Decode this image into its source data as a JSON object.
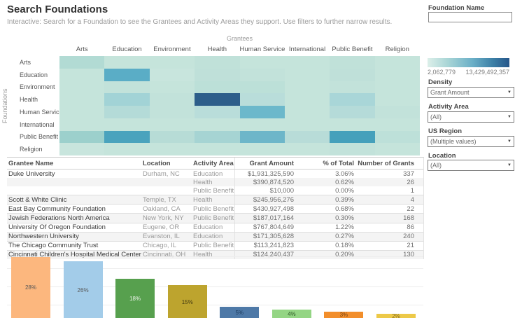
{
  "header": {
    "title": "Search Foundations",
    "subtitle": "Interactive: Search for a Foundation to see the Grantees and Activity Areas they support. Use filters to further narrow results."
  },
  "sidebar": {
    "foundation_name": {
      "label": "Foundation Name",
      "value": ""
    },
    "legend": {
      "min": "2,062,779",
      "max": "13,429,492,357"
    },
    "filters": [
      {
        "label": "Density",
        "value": "Grant Amount"
      },
      {
        "label": "Activity Area",
        "value": "(All)"
      },
      {
        "label": "US Region",
        "value": "(Multiple values)"
      },
      {
        "label": "Location",
        "value": "(All)"
      }
    ]
  },
  "chart_data": [
    {
      "type": "heatmap",
      "x_axis_label": "Grantees",
      "y_axis_label": "Foundations",
      "color_metric": "Grant Amount",
      "color_range": {
        "min": 2062779,
        "max": 13429492357
      },
      "columns": [
        "Arts",
        "Education",
        "Environment",
        "Health",
        "Human Services",
        "International",
        "Public Benefit",
        "Religion"
      ],
      "rows": [
        "Arts",
        "Education",
        "Environment",
        "Health",
        "Human Services",
        "International",
        "Public Benefit",
        "Religion"
      ],
      "cells_hex": [
        [
          "#b2dbd4",
          "#c5e4db",
          "#c5e4db",
          "#c0e1d9",
          "#c5e4db",
          "#c5e4db",
          "#c0e1d9",
          "#c5e4db"
        ],
        [
          "#c5e4db",
          "#5aadc6",
          "#c8e5dd",
          "#bfe0d9",
          "#c2e2da",
          "#c5e4db",
          "#bfe0d9",
          "#c5e4db"
        ],
        [
          "#c5e4db",
          "#c2e2da",
          "#c5e4db",
          "#bce0d8",
          "#bce0d8",
          "#c5e4db",
          "#c2e2da",
          "#c5e4db"
        ],
        [
          "#c5e4db",
          "#a2d3d6",
          "#c2e2da",
          "#2d5e8a",
          "#b9ddda",
          "#c5e4db",
          "#a9d6d8",
          "#c5e4db"
        ],
        [
          "#c5e4db",
          "#b4dbd8",
          "#c2e2da",
          "#b9ddda",
          "#6cb8cb",
          "#c5e4db",
          "#b5dbd9",
          "#c2e2da"
        ],
        [
          "#c5e4db",
          "#c5e4db",
          "#c5e4db",
          "#c5e4db",
          "#c5e4db",
          "#c5e4db",
          "#c5e4db",
          "#c5e4db"
        ],
        [
          "#9cd0cc",
          "#4aa3bd",
          "#b7dcd6",
          "#a6d4d3",
          "#6db6c9",
          "#b8dcd8",
          "#45a0bb",
          "#bde0d9"
        ],
        [
          "#c8e5dd",
          "#c5e4db",
          "#c5e4db",
          "#c5e4db",
          "#c5e4db",
          "#c5e4db",
          "#c2e2da",
          "#c5e4db"
        ]
      ]
    },
    {
      "type": "bar",
      "values": [
        28,
        26,
        18,
        15,
        5,
        4,
        3,
        2
      ],
      "value_labels": [
        "28%",
        "26%",
        "18%",
        "15%",
        "5%",
        "4%",
        "3%",
        "2%"
      ],
      "bar_colors": [
        "#fcb77e",
        "#a3cce9",
        "#57a04e",
        "#bda42e",
        "#4e79a7",
        "#94d584",
        "#f28e2b",
        "#edc948"
      ],
      "label_colors": [
        "#575757",
        "#575757",
        "#eef4ed",
        "#453c12",
        "#1b3a5c",
        "#2f5a28",
        "#713f10",
        "#806a1d"
      ],
      "grid": true
    }
  ],
  "table": {
    "columns": [
      "Grantee Name",
      "Location",
      "Activity Area",
      "Grant Amount",
      "% of Total",
      "Number of Grants"
    ],
    "rows": [
      {
        "grantee": "Duke University",
        "location": "Durham, NC",
        "activity": "Education",
        "amount": "$1,931,325,590",
        "pct": "3.06%",
        "grants": "337",
        "group_start": true
      },
      {
        "grantee": "",
        "location": "",
        "activity": "Health",
        "amount": "$390,874,520",
        "pct": "0.62%",
        "grants": "26",
        "group_start": false
      },
      {
        "grantee": "",
        "location": "",
        "activity": "Public Benefit",
        "amount": "$10,000",
        "pct": "0.00%",
        "grants": "1",
        "group_start": false
      },
      {
        "grantee": "Scott & White Clinic",
        "location": "Temple, TX",
        "activity": "Health",
        "amount": "$245,956,276",
        "pct": "0.39%",
        "grants": "4",
        "group_start": true
      },
      {
        "grantee": "East Bay Community Foundation",
        "location": "Oakland, CA",
        "activity": "Public Benefit",
        "amount": "$430,927,498",
        "pct": "0.68%",
        "grants": "22",
        "group_start": true
      },
      {
        "grantee": "Jewish Federations North America",
        "location": "New York, NY",
        "activity": "Public Benefit",
        "amount": "$187,017,164",
        "pct": "0.30%",
        "grants": "168",
        "group_start": true
      },
      {
        "grantee": "University Of Oregon Foundation",
        "location": "Eugene, OR",
        "activity": "Education",
        "amount": "$767,804,649",
        "pct": "1.22%",
        "grants": "86",
        "group_start": true
      },
      {
        "grantee": "Northwestern University",
        "location": "Evanston, IL",
        "activity": "Education",
        "amount": "$171,305,628",
        "pct": "0.27%",
        "grants": "240",
        "group_start": true
      },
      {
        "grantee": "The Chicago Community Trust",
        "location": "Chicago, IL",
        "activity": "Public Benefit",
        "amount": "$113,241,823",
        "pct": "0.18%",
        "grants": "21",
        "group_start": true
      },
      {
        "grantee": "Cincinnati Children's Hospital Medical Center",
        "location": "Cincinnati, OH",
        "activity": "Health",
        "amount": "$124,240,437",
        "pct": "0.20%",
        "grants": "130",
        "group_start": true
      }
    ]
  }
}
